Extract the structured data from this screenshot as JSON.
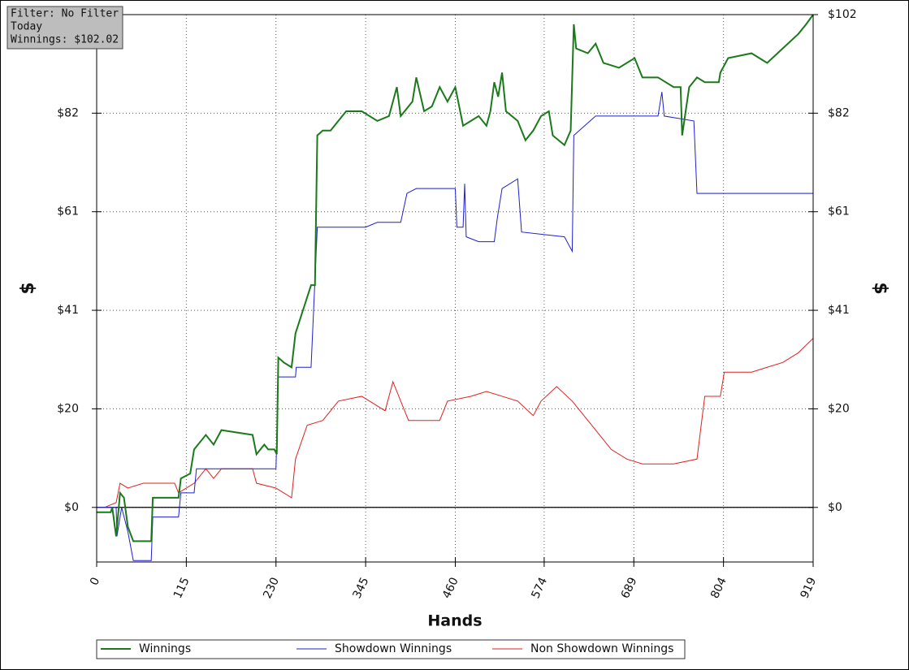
{
  "chart_data": {
    "type": "line",
    "info_box": [
      "Filter: No Filter",
      "Today",
      "Winnings: $102.02"
    ],
    "xlabel": "Hands",
    "ylabel": "$",
    "y2label": "$",
    "xlim": [
      0,
      919
    ],
    "xticks": [
      0,
      115,
      230,
      345,
      460,
      574,
      689,
      804,
      919
    ],
    "ylim": [
      -11.3,
      102
    ],
    "yticks": [
      {
        "value": 0,
        "label": "$0"
      },
      {
        "value": 20.4,
        "label": "$20"
      },
      {
        "value": 40.8,
        "label": "$41"
      },
      {
        "value": 61.2,
        "label": "$61"
      },
      {
        "value": 81.6,
        "label": "$82"
      },
      {
        "value": 102,
        "label": "$102"
      }
    ],
    "y2lim": [
      -11.3,
      102
    ],
    "y2ticks": [
      {
        "value": 0,
        "label": "$0"
      },
      {
        "value": 20.4,
        "label": "$20"
      },
      {
        "value": 40.8,
        "label": "$41"
      },
      {
        "value": 61.2,
        "label": "$61"
      },
      {
        "value": 81.6,
        "label": "$82"
      },
      {
        "value": 102,
        "label": "$102"
      }
    ],
    "grid": true,
    "series": [
      {
        "name": "Winnings",
        "color": "#1a7a1a",
        "x": [
          0,
          18,
          20,
          25,
          30,
          35,
          40,
          47,
          70,
          72,
          100,
          105,
          108,
          120,
          125,
          140,
          150,
          160,
          200,
          205,
          215,
          220,
          228,
          231,
          233,
          240,
          250,
          255,
          265,
          275,
          280,
          283,
          290,
          300,
          310,
          320,
          340,
          350,
          360,
          375,
          385,
          390,
          405,
          410,
          420,
          430,
          440,
          450,
          460,
          470,
          480,
          490,
          500,
          505,
          510,
          515,
          520,
          525,
          540,
          550,
          560,
          570,
          580,
          585,
          600,
          608,
          612,
          615,
          630,
          640,
          650,
          670,
          690,
          700,
          720,
          740,
          749,
          751,
          760,
          770,
          780,
          798,
          800,
          810,
          840,
          860,
          880,
          900,
          910,
          919
        ],
        "values": [
          -1,
          -1,
          0,
          -6,
          3,
          2,
          -4,
          -7,
          -7,
          2,
          2,
          2,
          6,
          7,
          12,
          15,
          13,
          16,
          15,
          11,
          13,
          12,
          12,
          11,
          31,
          30,
          29,
          36,
          41,
          46,
          46,
          77,
          78,
          78,
          80,
          82,
          82,
          81,
          80,
          81,
          87,
          81,
          84,
          89,
          82,
          83,
          87,
          84,
          87,
          79,
          80,
          81,
          79,
          82,
          88,
          85,
          90,
          82,
          80,
          76,
          78,
          81,
          82,
          77,
          75,
          78,
          100,
          95,
          94,
          96,
          92,
          91,
          93,
          89,
          89,
          87,
          87,
          77,
          87,
          89,
          88,
          88,
          90,
          93,
          94,
          92,
          95,
          98,
          100,
          102
        ]
      },
      {
        "name": "Showdown Winnings",
        "color": "#1f1fd0",
        "x": [
          0,
          25,
          26,
          32,
          40,
          47,
          70,
          72,
          105,
          108,
          125,
          128,
          230,
          233,
          255,
          256,
          275,
          283,
          345,
          360,
          390,
          398,
          410,
          460,
          462,
          470,
          472,
          474,
          490,
          510,
          514,
          520,
          540,
          545,
          600,
          610,
          612,
          640,
          720,
          725,
          728,
          766,
          770,
          919
        ],
        "values": [
          0,
          0,
          -6,
          0,
          -5,
          -11,
          -11,
          -2,
          -2,
          3,
          3,
          8,
          8,
          27,
          27,
          29,
          29,
          58,
          58,
          59,
          59,
          65,
          66,
          66,
          58,
          58,
          67,
          56,
          55,
          55,
          60,
          66,
          68,
          57,
          56,
          53,
          77,
          81,
          81,
          86,
          81,
          80,
          65,
          65
        ]
      },
      {
        "name": "Non Showdown Winnings",
        "color": "#e02020",
        "x": [
          0,
          10,
          25,
          30,
          40,
          60,
          100,
          105,
          115,
          125,
          140,
          150,
          160,
          200,
          205,
          230,
          250,
          255,
          270,
          290,
          310,
          340,
          370,
          380,
          400,
          440,
          450,
          480,
          500,
          520,
          540,
          560,
          570,
          590,
          610,
          620,
          640,
          660,
          680,
          700,
          720,
          740,
          770,
          780,
          800,
          805,
          840,
          860,
          880,
          900,
          919
        ],
        "values": [
          0,
          0,
          1,
          5,
          4,
          5,
          5,
          3,
          4,
          5,
          8,
          6,
          8,
          8,
          5,
          4,
          2,
          10,
          17,
          18,
          22,
          23,
          20,
          26,
          18,
          18,
          22,
          23,
          24,
          23,
          22,
          19,
          22,
          25,
          22,
          20,
          16,
          12,
          10,
          9,
          9,
          9,
          10,
          23,
          23,
          28,
          28,
          29,
          30,
          32,
          35
        ]
      }
    ]
  }
}
